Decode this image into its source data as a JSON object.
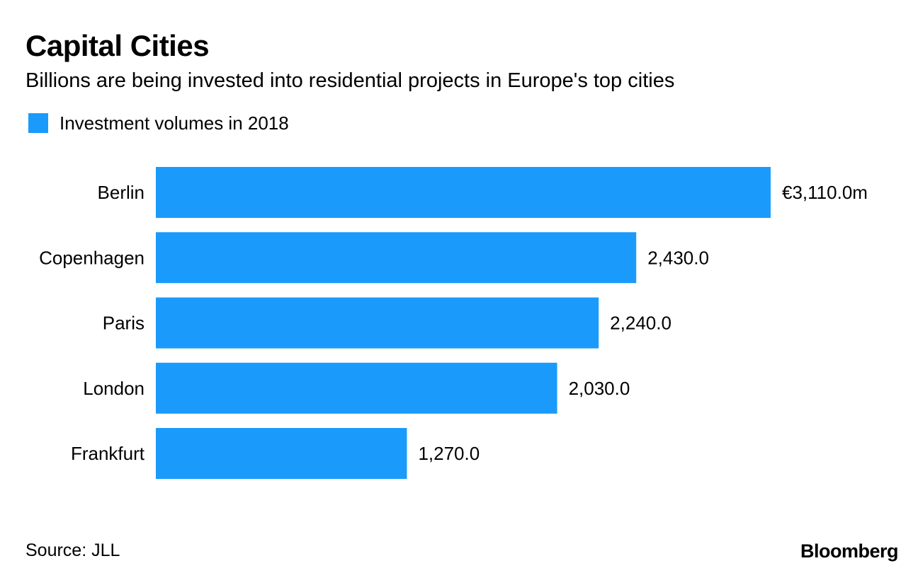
{
  "header": {
    "title": "Capital Cities",
    "subtitle": "Billions are being invested into residential projects in Europe's top cities"
  },
  "legend": {
    "label": "Investment volumes in 2018",
    "color": "#1a9bfc"
  },
  "chart_data": {
    "type": "bar",
    "orientation": "horizontal",
    "title": "Capital Cities",
    "subtitle": "Billions are being invested into residential projects in Europe's top cities",
    "xlabel": "",
    "ylabel": "",
    "grid": false,
    "legend_position": "top-left",
    "categories": [
      "Berlin",
      "Copenhagen",
      "Paris",
      "London",
      "Frankfurt"
    ],
    "series": [
      {
        "name": "Investment volumes in 2018",
        "values": [
          3110.0,
          2430.0,
          2240.0,
          2030.0,
          1270.0
        ],
        "labels": [
          "€3,110.0m",
          "2,430.0",
          "2,240.0",
          "2,030.0",
          "1,270.0"
        ],
        "color": "#1a9bfc"
      }
    ],
    "xlim": [
      0,
      3110
    ]
  },
  "footer": {
    "source": "Source: JLL",
    "brand": "Bloomberg"
  }
}
